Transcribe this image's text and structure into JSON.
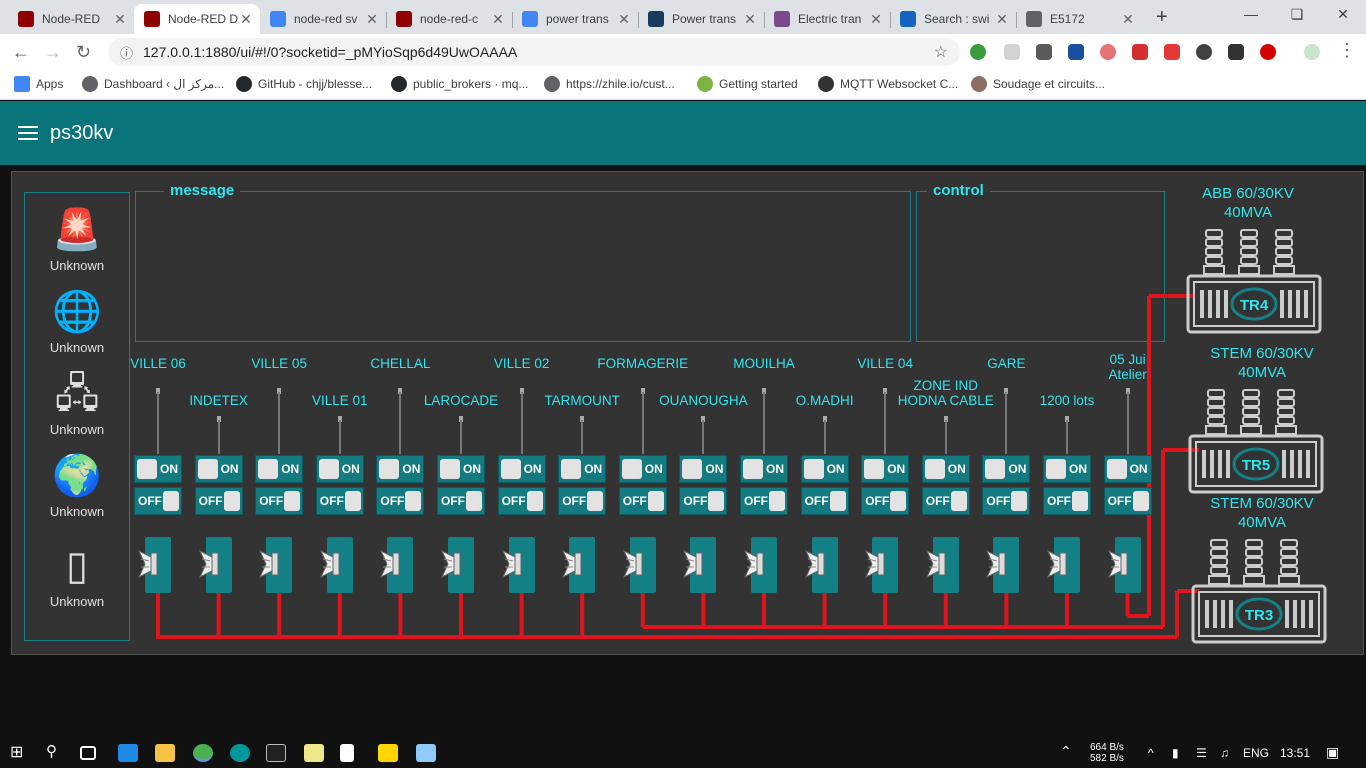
{
  "browser": {
    "tabs": [
      {
        "label": "Node-RED",
        "color": "#8f0000",
        "active": false
      },
      {
        "label": "Node-RED D",
        "color": "#8f0000",
        "active": true
      },
      {
        "label": "node-red sv",
        "color": "#4285f4",
        "active": false
      },
      {
        "label": "node-red-c",
        "color": "#8f0000",
        "active": false
      },
      {
        "label": "power trans",
        "color": "#4285f4",
        "active": false
      },
      {
        "label": "Power trans",
        "color": "#1a3b5d",
        "active": false
      },
      {
        "label": "Electric tran",
        "color": "#7a4a8c",
        "active": false
      },
      {
        "label": "Search : swi",
        "color": "#1565c0",
        "active": false
      },
      {
        "label": "E5172",
        "color": "#5f6368",
        "active": false
      }
    ],
    "new_tab": "+",
    "url": "127.0.0.1:1880/ui/#!/0?socketid=_pMYioSqp6d49UwOAAAA",
    "bookmarks": [
      {
        "label": "Apps",
        "color": "#4285f4"
      },
      {
        "label": "Dashboard ‹ مركز ال...",
        "color": "#5f6368"
      },
      {
        "label": "GitHub - chjj/blesse...",
        "color": "#24292e"
      },
      {
        "label": "public_brokers · mq...",
        "color": "#24292e"
      },
      {
        "label": "https://zhile.io/cust...",
        "color": "#5f6368"
      },
      {
        "label": "Getting started",
        "color": "#7cb342"
      },
      {
        "label": "MQTT Websocket C...",
        "color": "#333333"
      },
      {
        "label": "Soudage et circuits...",
        "color": "#8d6e63"
      }
    ]
  },
  "dashboard": {
    "title": "ps30kv",
    "groups": {
      "message": "message",
      "control": "control"
    },
    "status_items": [
      {
        "label": "Unknown",
        "icon": "alarm-light-icon"
      },
      {
        "label": "Unknown",
        "icon": "globe-computer-icon"
      },
      {
        "label": "Unknown",
        "icon": "network-icon"
      },
      {
        "label": "Unknown",
        "icon": "world-keyboard-icon"
      },
      {
        "label": "Unknown",
        "icon": "device-icon"
      }
    ],
    "feeders": [
      {
        "label": "VILLE 06",
        "row": 0
      },
      {
        "label": "INDETEX",
        "row": 1
      },
      {
        "label": "VILLE 05",
        "row": 0
      },
      {
        "label": "VILLE 01",
        "row": 1
      },
      {
        "label": "CHELLAL",
        "row": 0
      },
      {
        "label": "LAROCADE",
        "row": 1
      },
      {
        "label": "VILLE 02",
        "row": 0
      },
      {
        "label": "TARMOUNT",
        "row": 1
      },
      {
        "label": "FORMAGERIE",
        "row": 0
      },
      {
        "label": "OUANOUGHA",
        "row": 1
      },
      {
        "label": "MOUILHA",
        "row": 0
      },
      {
        "label": "O.MADHI",
        "row": 1
      },
      {
        "label": "VILLE 04",
        "row": 0
      },
      {
        "label": "ZONE IND\nHODNA CABLE",
        "row": 1
      },
      {
        "label": "GARE",
        "row": 0
      },
      {
        "label": "1200 lots",
        "row": 1
      },
      {
        "label": "05 Jui\nAtelier",
        "row": 0
      }
    ],
    "buttons": {
      "on": "ON",
      "off": "OFF"
    },
    "transformers": [
      {
        "title": "ABB 60/30KV\n40MVA",
        "tag": "TR4"
      },
      {
        "title": "STEM 60/30KV\n40MVA",
        "tag": "TR5"
      },
      {
        "title": "STEM 60/30KV\n40MVA",
        "tag": "TR3"
      }
    ],
    "accent_color": "#2ee6f0",
    "bus_color": "#e0141d"
  },
  "taskbar": {
    "net_up": "664 B/s",
    "net_down": "582 B/s",
    "lang": "ENG",
    "time": "13:51"
  }
}
